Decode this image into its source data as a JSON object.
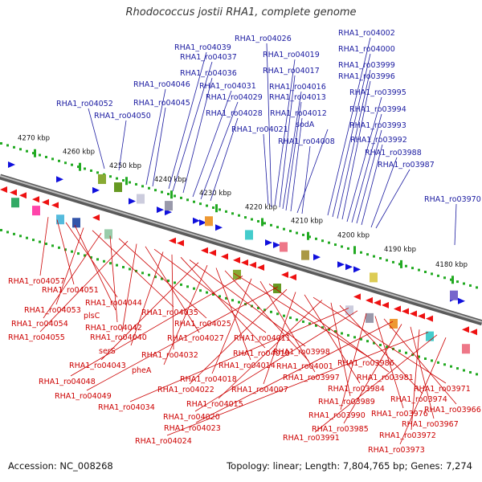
{
  "title": "Rhodococcus jostii RHA1, complete genome",
  "footer": {
    "accession_label": "Accession:",
    "accession": "NC_008268",
    "topology_label": "Topology:",
    "topology": "linear",
    "length_label": "Length:",
    "length": "7,804,765 bp",
    "genes_label": "Genes:",
    "genes": "7,274"
  },
  "colors": {
    "top_labels": "#1a1aa0",
    "bottom_labels": "#cc0000",
    "forward_genes": "#1010dd",
    "reverse_genes": "#ee1111",
    "scale_dots": "#22aa22",
    "backbone": "#888888"
  },
  "scale_ticks": [
    "4270 kbp",
    "4260 kbp",
    "4250 kbp",
    "4240 kbp",
    "4230 kbp",
    "4220 kbp",
    "4210 kbp",
    "4200 kbp",
    "4190 kbp",
    "4180 kbp"
  ],
  "top_labels": [
    "RHA1_ro04026",
    "RHA1_ro04002",
    "RHA1_ro04039",
    "RHA1_ro04037",
    "RHA1_ro04019",
    "RHA1_ro04000",
    "RHA1_ro03999",
    "RHA1_ro04017",
    "RHA1_ro04036",
    "RHA1_ro03996",
    "RHA1_ro04046",
    "RHA1_ro04031",
    "RHA1_ro04016",
    "RHA1_ro03995",
    "RHA1_ro04029",
    "RHA1_ro04013",
    "RHA1_ro04052",
    "RHA1_ro04045",
    "RHA1_ro03994",
    "RHA1_ro04028",
    "RHA1_ro04012",
    "RHA1_ro04050",
    "sodA",
    "RHA1_ro03993",
    "RHA1_ro04021",
    "RHA1_ro03992",
    "RHA1_ro04008",
    "RHA1_ro03988",
    "RHA1_ro03987",
    "RHA1_ro03970"
  ],
  "bottom_labels": [
    "RHA1_ro04057",
    "RHA1_ro04051",
    "RHA1_ro04044",
    "plsC",
    "RHA1_ro04053",
    "RHA1_ro04035",
    "RHA1_ro04054",
    "RHA1_ro04042",
    "RHA1_ro04025",
    "RHA1_ro04055",
    "RHA1_ro04040",
    "RHA1_ro04027",
    "RHA1_ro04011",
    "serS",
    "RHA1_ro04032",
    "RHA1_ro04010",
    "RHA1_ro03998",
    "RHA1_ro04043",
    "pheA",
    "RHA1_ro04014",
    "RHA1_ro04001",
    "RHA1_ro03986",
    "RHA1_ro04048",
    "RHA1_ro04018",
    "RHA1_ro03997",
    "RHA1_ro03981",
    "RHA1_ro04049",
    "RHA1_ro04022",
    "RHA1_ro04007",
    "RHA1_ro03984",
    "RHA1_ro03971",
    "RHA1_ro04015",
    "RHA1_ro03989",
    "RHA1_ro03974",
    "RHA1_ro04034",
    "RHA1_ro04020",
    "RHA1_ro03990",
    "RHA1_ro03976",
    "RHA1_ro03966",
    "RHA1_ro04023",
    "RHA1_ro03985",
    "RHA1_ro03967",
    "RHA1_ro03972",
    "RHA1_ro04024",
    "RHA1_ro03991",
    "RHA1_ro03973"
  ]
}
